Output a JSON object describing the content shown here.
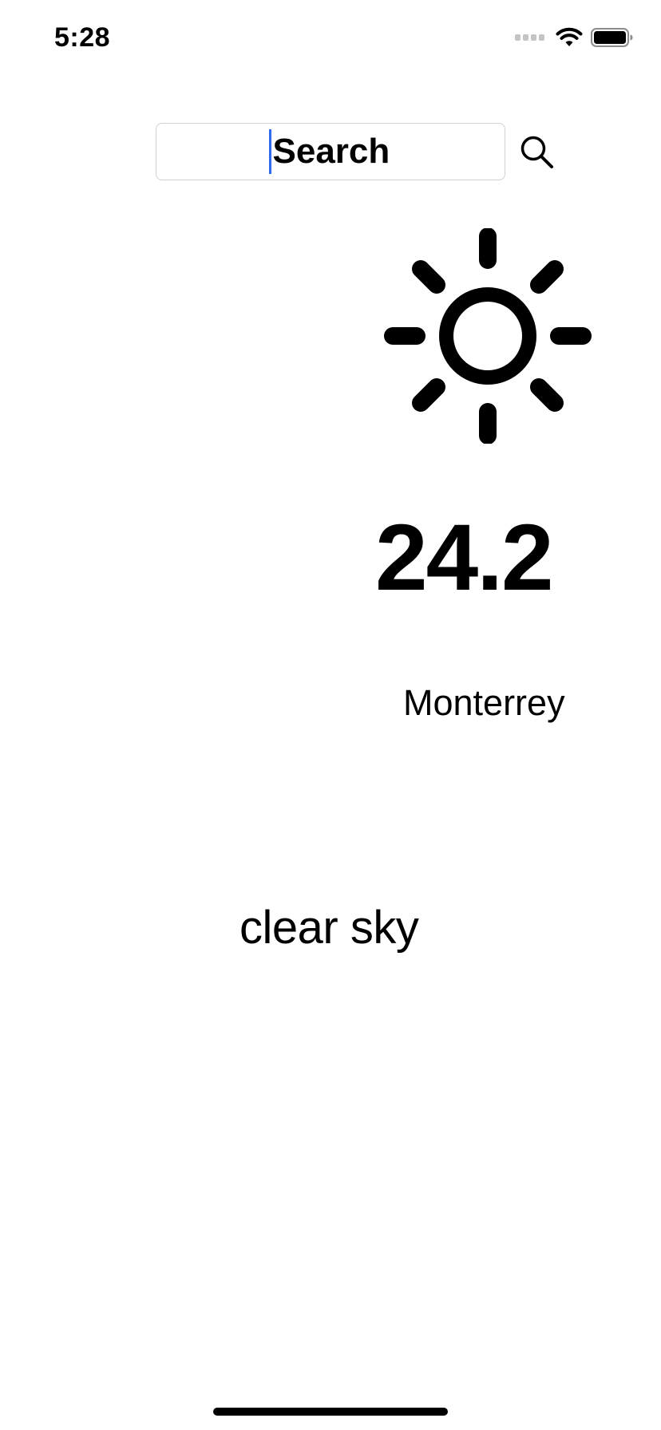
{
  "status_bar": {
    "time": "5:28",
    "icons": [
      "signal-icon",
      "wifi-icon",
      "battery-icon"
    ]
  },
  "search": {
    "placeholder": "Search",
    "value": "",
    "button_icon": "search-icon",
    "cursor_color": "#2f6bf0"
  },
  "weather": {
    "condition_icon": "sun-icon",
    "temperature": "24.2",
    "city": "Monterrey",
    "description": "clear sky"
  }
}
